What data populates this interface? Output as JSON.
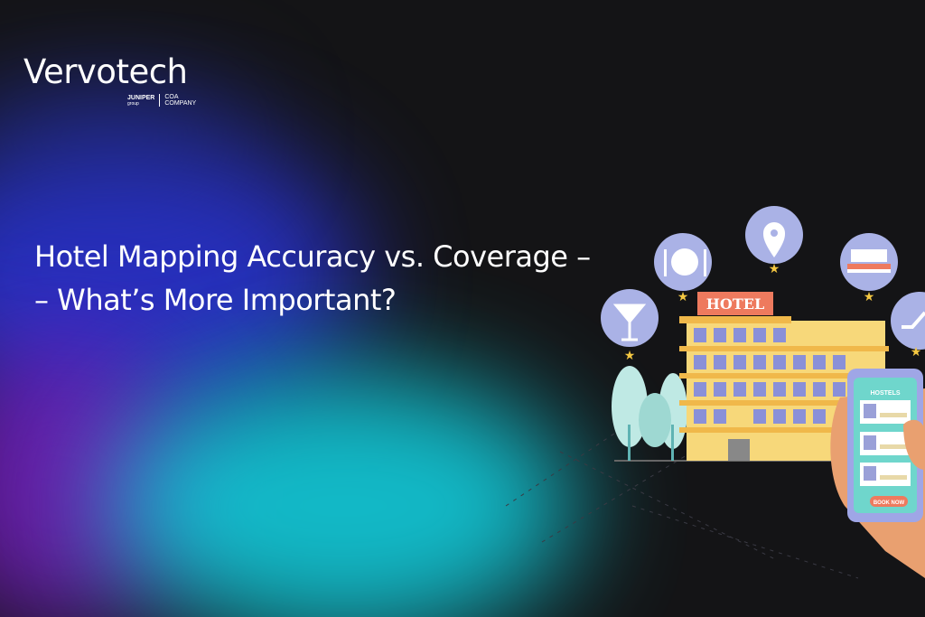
{
  "logo": {
    "wordmark": "Vervotech",
    "parent": "JUNIPER",
    "parent_sub": "group",
    "coa": "COA",
    "company": "COMPANY"
  },
  "headline": {
    "line1": "Hotel Mapping Accuracy vs. Coverage –",
    "line2": "– What’s More Important?"
  },
  "illustration": {
    "hotel_sign": "HOTEL",
    "phone_header": "HOSTELS",
    "phone_button": "BOOK NOW",
    "icons": [
      "cocktail-icon",
      "dining-icon",
      "location-pin-icon",
      "bed-icon",
      "escalator-icon"
    ]
  },
  "colors": {
    "background": "#141416",
    "blue": "#2a2fd0",
    "cyan": "#10d8e8",
    "purple": "#6a1fc0",
    "hotel_yellow": "#f7d87a",
    "sign": "#ee7a5e"
  }
}
